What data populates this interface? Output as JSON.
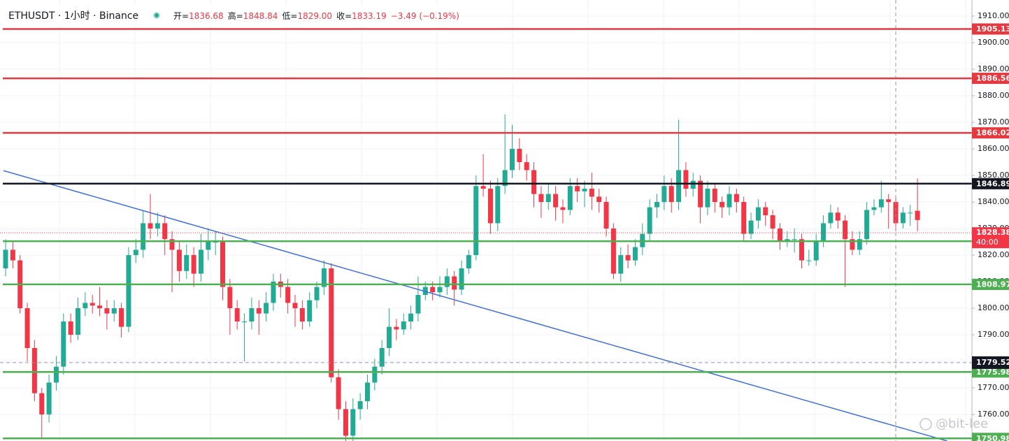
{
  "chart_data": {
    "type": "candlestick",
    "header": {
      "symbol": "ETHUSDT · 1小时 · Binance",
      "open_label": "开=",
      "open": "1836.68",
      "high_label": "高=",
      "high": "1848.84",
      "low_label": "低=",
      "low": "1829.00",
      "close_label": "收=",
      "close": "1833.19",
      "change": "−3.49 (−0.19%)"
    },
    "up_color": "#22ab94",
    "down_color": "#f23645",
    "ylim": [
      1750,
      1916.05
    ],
    "yticks": [
      {
        "value": 1760,
        "label": "1760.00"
      },
      {
        "value": 1770,
        "label": "1770.00"
      },
      {
        "value": 1780,
        "label": "1780.00"
      },
      {
        "value": 1790,
        "label": "1790.00"
      },
      {
        "value": 1800,
        "label": "1800.00"
      },
      {
        "value": 1810,
        "label": "1810.00"
      },
      {
        "value": 1820,
        "label": "1820.00"
      },
      {
        "value": 1830,
        "label": "1830.00"
      },
      {
        "value": 1840,
        "label": "1840.00"
      },
      {
        "value": 1850,
        "label": "1850.00"
      },
      {
        "value": 1860,
        "label": "1860.00"
      },
      {
        "value": 1870,
        "label": "1870.00"
      },
      {
        "value": 1880,
        "label": "1880.00"
      },
      {
        "value": 1890,
        "label": "1890.00"
      },
      {
        "value": 1900,
        "label": "1900.00"
      },
      {
        "value": 1910,
        "label": "1910.00"
      }
    ],
    "grid": true,
    "levels": [
      {
        "value": 1905.13,
        "color": "#e5393f"
      },
      {
        "value": 1886.56,
        "color": "#e5393f"
      },
      {
        "value": 1866.02,
        "color": "#e5393f"
      },
      {
        "value": 1846.89,
        "color": "#131722"
      },
      {
        "value": 1825.23,
        "color": "#4caf50"
      },
      {
        "value": 1808.97,
        "color": "#4caf50"
      },
      {
        "value": 1775.98,
        "color": "#4caf50"
      },
      {
        "value": 1750.98,
        "color": "#4caf50"
      }
    ],
    "last_price": {
      "value": 1828.38,
      "countdown": "40:00",
      "color": "#f23645"
    },
    "crosshair": {
      "price": 1779.52,
      "index": 123
    },
    "trendline": {
      "start": [
        -0.3,
        1851.8
      ],
      "end": [
        130.1,
        1750
      ],
      "color": "#3f6fe0"
    },
    "watermark": "@bit-lee",
    "ohlc": [
      [
        1815,
        1826,
        1812,
        1822
      ],
      [
        1822,
        1825,
        1815,
        1818
      ],
      [
        1818,
        1820,
        1798,
        1800
      ],
      [
        1800,
        1802,
        1780,
        1785
      ],
      [
        1785,
        1788,
        1765,
        1768
      ],
      [
        1768,
        1770,
        1751,
        1760
      ],
      [
        1760,
        1775,
        1757,
        1772
      ],
      [
        1772,
        1782,
        1769,
        1778
      ],
      [
        1778,
        1798,
        1775,
        1795
      ],
      [
        1795,
        1798,
        1787,
        1790
      ],
      [
        1790,
        1804,
        1788,
        1800
      ],
      [
        1800,
        1806,
        1797,
        1802
      ],
      [
        1802,
        1805,
        1798,
        1801
      ],
      [
        1801,
        1808,
        1797,
        1800
      ],
      [
        1800,
        1803,
        1792,
        1798
      ],
      [
        1798,
        1803,
        1795,
        1800
      ],
      [
        1800,
        1802,
        1789,
        1793
      ],
      [
        1793,
        1823,
        1791,
        1820
      ],
      [
        1820,
        1826,
        1817,
        1822
      ],
      [
        1822,
        1837,
        1819,
        1832
      ],
      [
        1832,
        1843,
        1826,
        1830
      ],
      [
        1830,
        1836,
        1827,
        1832
      ],
      [
        1832,
        1835,
        1820,
        1826
      ],
      [
        1826,
        1829,
        1806,
        1822
      ],
      [
        1822,
        1825,
        1810,
        1814
      ],
      [
        1814,
        1824,
        1811,
        1820
      ],
      [
        1820,
        1823,
        1808,
        1813
      ],
      [
        1813,
        1828,
        1810,
        1822
      ],
      [
        1822,
        1830,
        1818,
        1825
      ],
      [
        1825,
        1829,
        1820,
        1825
      ],
      [
        1825,
        1827,
        1803,
        1808
      ],
      [
        1808,
        1811,
        1790,
        1800
      ],
      [
        1800,
        1803,
        1792,
        1795
      ],
      [
        1795,
        1798,
        1780,
        1795
      ],
      [
        1795,
        1804,
        1792,
        1800
      ],
      [
        1800,
        1803,
        1790,
        1798
      ],
      [
        1798,
        1806,
        1795,
        1802
      ],
      [
        1802,
        1813,
        1799,
        1810
      ],
      [
        1810,
        1813,
        1804,
        1808
      ],
      [
        1808,
        1811,
        1798,
        1802
      ],
      [
        1802,
        1805,
        1793,
        1800
      ],
      [
        1800,
        1803,
        1792,
        1795
      ],
      [
        1795,
        1806,
        1793,
        1803
      ],
      [
        1803,
        1810,
        1800,
        1808
      ],
      [
        1808,
        1818,
        1805,
        1815
      ],
      [
        1815,
        1817,
        1772,
        1774
      ],
      [
        1774,
        1777,
        1758,
        1762
      ],
      [
        1762,
        1765,
        1750,
        1752
      ],
      [
        1752,
        1766,
        1750,
        1762
      ],
      [
        1762,
        1768,
        1758,
        1765
      ],
      [
        1765,
        1775,
        1762,
        1772
      ],
      [
        1772,
        1781,
        1769,
        1778
      ],
      [
        1778,
        1788,
        1775,
        1785
      ],
      [
        1785,
        1800,
        1782,
        1793
      ],
      [
        1793,
        1796,
        1788,
        1792
      ],
      [
        1792,
        1798,
        1790,
        1795
      ],
      [
        1795,
        1801,
        1792,
        1798
      ],
      [
        1798,
        1812,
        1795,
        1805
      ],
      [
        1805,
        1810,
        1803,
        1808
      ],
      [
        1808,
        1810,
        1803,
        1806
      ],
      [
        1806,
        1812,
        1804,
        1808
      ],
      [
        1808,
        1815,
        1805,
        1812
      ],
      [
        1812,
        1814,
        1801,
        1807
      ],
      [
        1807,
        1818,
        1805,
        1815
      ],
      [
        1815,
        1822,
        1813,
        1820
      ],
      [
        1820,
        1850,
        1818,
        1846
      ],
      [
        1846,
        1858,
        1842,
        1845
      ],
      [
        1845,
        1848,
        1828,
        1832
      ],
      [
        1832,
        1849,
        1829,
        1846
      ],
      [
        1846,
        1873,
        1843,
        1852
      ],
      [
        1852,
        1869,
        1849,
        1860
      ],
      [
        1860,
        1864,
        1852,
        1855
      ],
      [
        1855,
        1858,
        1848,
        1852
      ],
      [
        1852,
        1855,
        1838,
        1843
      ],
      [
        1843,
        1846,
        1834,
        1840
      ],
      [
        1840,
        1847,
        1837,
        1843
      ],
      [
        1843,
        1846,
        1833,
        1838
      ],
      [
        1838,
        1841,
        1832,
        1837
      ],
      [
        1837,
        1849,
        1835,
        1846
      ],
      [
        1846,
        1849,
        1840,
        1844
      ],
      [
        1844,
        1848,
        1838,
        1845
      ],
      [
        1845,
        1851,
        1837,
        1842
      ],
      [
        1842,
        1845,
        1836,
        1840
      ],
      [
        1840,
        1842,
        1827,
        1830
      ],
      [
        1830,
        1832,
        1811,
        1813
      ],
      [
        1813,
        1823,
        1810,
        1820
      ],
      [
        1820,
        1824,
        1815,
        1818
      ],
      [
        1818,
        1826,
        1816,
        1823
      ],
      [
        1823,
        1832,
        1820,
        1828
      ],
      [
        1828,
        1841,
        1825,
        1838
      ],
      [
        1838,
        1843,
        1834,
        1840
      ],
      [
        1840,
        1850,
        1837,
        1846
      ],
      [
        1846,
        1849,
        1836,
        1840
      ],
      [
        1840,
        1871,
        1837,
        1852
      ],
      [
        1852,
        1855,
        1842,
        1845
      ],
      [
        1845,
        1851,
        1842,
        1848
      ],
      [
        1848,
        1850,
        1832,
        1838
      ],
      [
        1838,
        1848,
        1835,
        1845
      ],
      [
        1845,
        1847,
        1836,
        1840
      ],
      [
        1840,
        1842,
        1834,
        1838
      ],
      [
        1838,
        1846,
        1835,
        1843
      ],
      [
        1843,
        1845,
        1836,
        1840
      ],
      [
        1840,
        1842,
        1825,
        1828
      ],
      [
        1828,
        1836,
        1826,
        1833
      ],
      [
        1833,
        1841,
        1830,
        1838
      ],
      [
        1838,
        1840,
        1831,
        1835
      ],
      [
        1835,
        1837,
        1826,
        1830
      ],
      [
        1830,
        1832,
        1822,
        1825
      ],
      [
        1825,
        1829,
        1823,
        1826
      ],
      [
        1826,
        1830,
        1821,
        1826
      ],
      [
        1826,
        1828,
        1815,
        1818
      ],
      [
        1818,
        1822,
        1816,
        1818
      ],
      [
        1818,
        1828,
        1816,
        1825
      ],
      [
        1825,
        1835,
        1823,
        1832
      ],
      [
        1832,
        1839,
        1830,
        1836
      ],
      [
        1836,
        1838,
        1830,
        1833
      ],
      [
        1833,
        1835,
        1808,
        1826
      ],
      [
        1826,
        1829,
        1820,
        1822
      ],
      [
        1822,
        1829,
        1820,
        1826
      ],
      [
        1826,
        1840,
        1824,
        1837
      ],
      [
        1837,
        1841,
        1835,
        1838
      ],
      [
        1838,
        1848,
        1836,
        1841
      ],
      [
        1841,
        1843,
        1830,
        1840
      ],
      [
        1840,
        1842,
        1829,
        1832
      ],
      [
        1832,
        1838,
        1830,
        1836
      ],
      [
        1836,
        1839,
        1831,
        1836
      ],
      [
        1836.68,
        1848.84,
        1829,
        1833.19
      ]
    ]
  }
}
